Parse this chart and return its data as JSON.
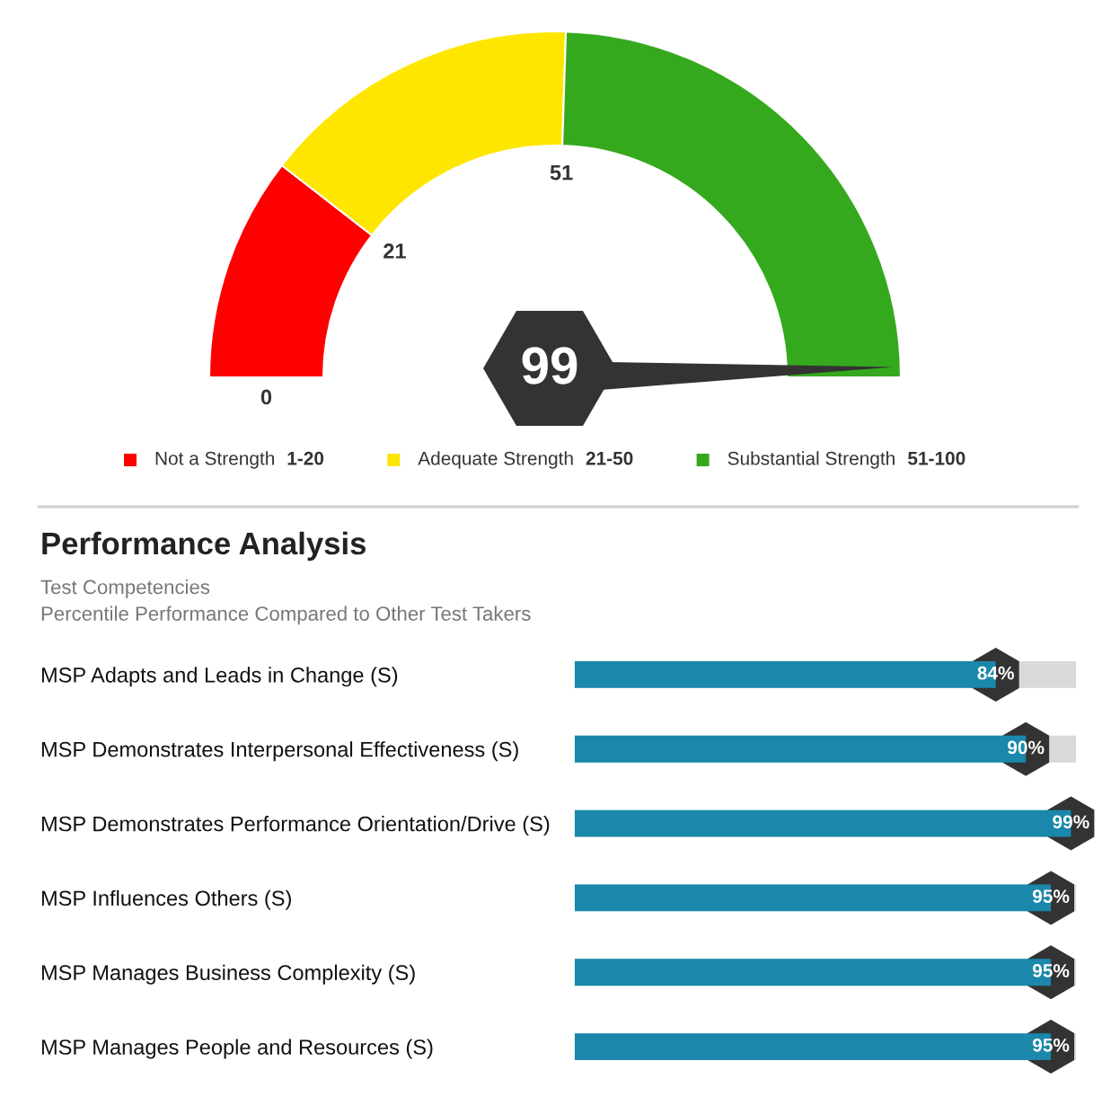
{
  "chart_data": [
    {
      "type": "donut",
      "categories": [
        "Not a Strength",
        "Adequate Strength",
        "Substantial Strength"
      ],
      "values": [
        21,
        30,
        49
      ],
      "colors": [
        "#ff0000",
        "#ffe600",
        "#35a91e"
      ],
      "value_labels": [
        "1-20",
        "21-50",
        "51-100"
      ],
      "needle": "Substantial Strength",
      "annotations": [
        "0",
        "21",
        "51",
        "99"
      ],
      "legend": "bottom"
    },
    {
      "type": "bar",
      "orientation": "horizontal",
      "title": "Performance Analysis",
      "subtitle": "Test Competencies\nPercentile Performance Compared to Other Test Takers",
      "categories": [
        "MSP Adapts and Leads in Change (S)",
        "MSP Demonstrates Interpersonal Effectiveness (S)",
        "MSP Demonstrates Performance Orientation/Drive (S)",
        "MSP Influences Others (S)",
        "MSP Manages Business Complexity (S)",
        "MSP Manages People and Resources (S)"
      ],
      "values": [
        84,
        90,
        99,
        95,
        95,
        95
      ],
      "value_labels": [
        "84%",
        "90%",
        "99%",
        "95%",
        "95%",
        "95%"
      ],
      "color": "#1a87ab",
      "xlim": [
        0,
        100
      ],
      "tick_labels": "y"
    }
  ]
}
